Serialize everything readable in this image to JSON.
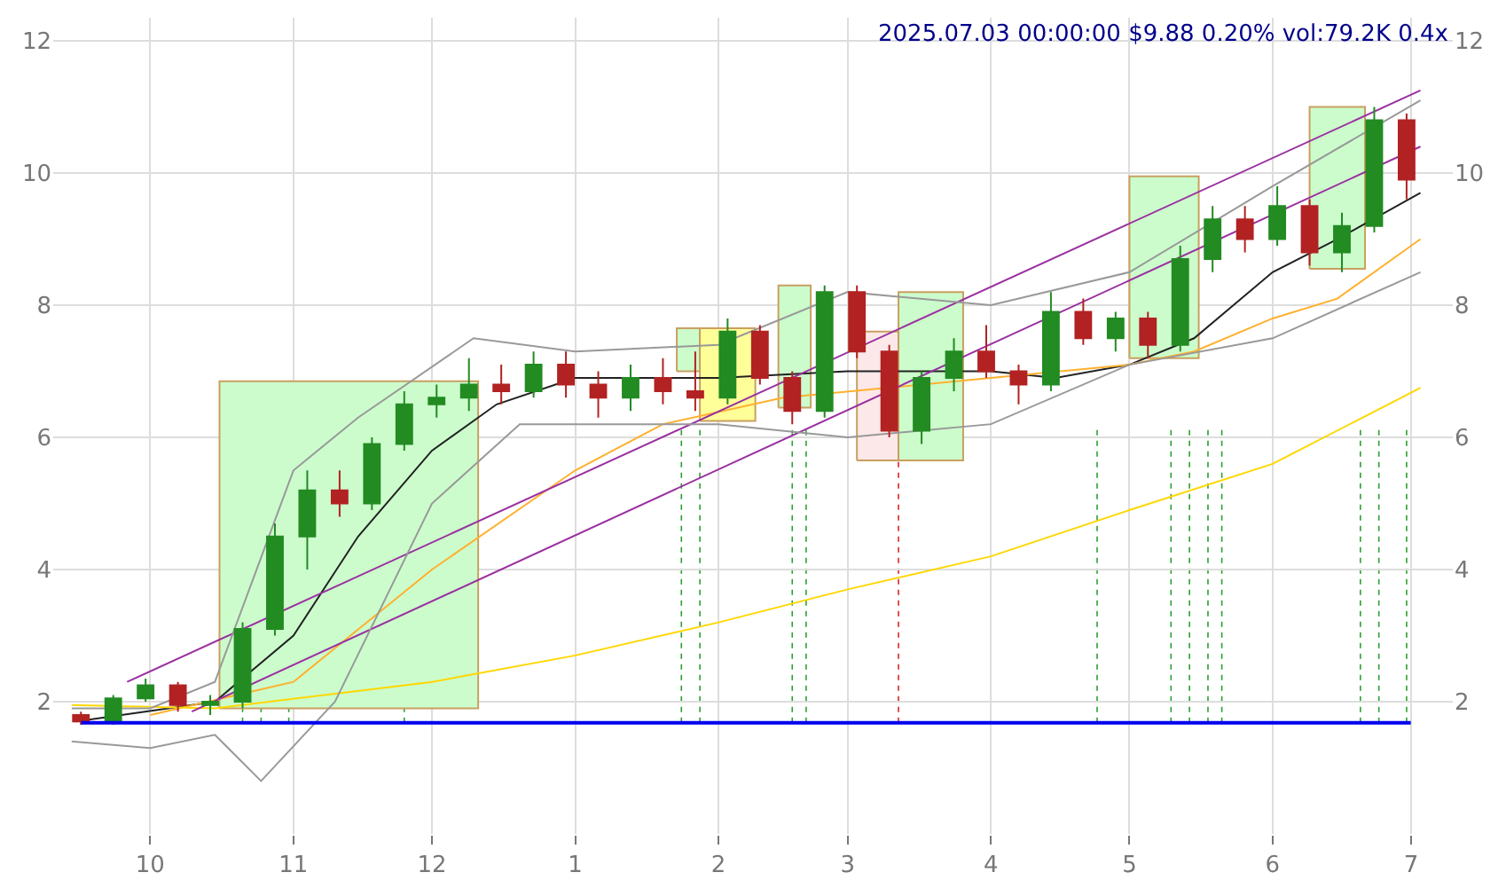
{
  "chart_data": {
    "type": "candlestick",
    "annotations": [
      "2025.07.03 00:00:00 $9.88 0.20% vol:79.2K 0.4x"
    ],
    "x": [
      "2024-09-16",
      "2024-09-23",
      "2024-09-30",
      "2024-10-07",
      "2024-10-14",
      "2024-10-21",
      "2024-10-28",
      "2024-11-04",
      "2024-11-11",
      "2024-11-18",
      "2024-11-25",
      "2024-12-02",
      "2024-12-09",
      "2024-12-16",
      "2024-12-23",
      "2024-12-30",
      "2025-01-06",
      "2025-01-13",
      "2025-01-20",
      "2025-01-27",
      "2025-02-03",
      "2025-02-10",
      "2025-02-17",
      "2025-02-24",
      "2025-03-03",
      "2025-03-10",
      "2025-03-17",
      "2025-03-24",
      "2025-03-31",
      "2025-04-07",
      "2025-04-14",
      "2025-04-21",
      "2025-04-28",
      "2025-05-05",
      "2025-05-12",
      "2025-05-19",
      "2025-05-26",
      "2025-06-02",
      "2025-06-09",
      "2025-06-16",
      "2025-06-23",
      "2025-06-30"
    ],
    "ohlc": [
      [
        1.8,
        1.85,
        1.65,
        1.7
      ],
      [
        1.7,
        2.1,
        1.65,
        2.05
      ],
      [
        2.05,
        2.35,
        2.0,
        2.25
      ],
      [
        2.25,
        2.3,
        1.85,
        1.95
      ],
      [
        1.95,
        2.1,
        1.8,
        2.0
      ],
      [
        2.0,
        3.2,
        1.9,
        3.1
      ],
      [
        3.1,
        4.7,
        3.0,
        4.5
      ],
      [
        4.5,
        5.5,
        4.0,
        5.2
      ],
      [
        5.2,
        5.5,
        4.8,
        5.0
      ],
      [
        5.0,
        6.0,
        4.9,
        5.9
      ],
      [
        5.9,
        6.7,
        5.8,
        6.5
      ],
      [
        6.5,
        6.8,
        6.3,
        6.6
      ],
      [
        6.6,
        7.2,
        6.4,
        6.8
      ],
      [
        6.8,
        7.1,
        6.5,
        6.7
      ],
      [
        6.7,
        7.3,
        6.6,
        7.1
      ],
      [
        7.1,
        7.3,
        6.6,
        6.8
      ],
      [
        6.8,
        7.0,
        6.3,
        6.6
      ],
      [
        6.6,
        7.1,
        6.4,
        6.9
      ],
      [
        6.9,
        7.2,
        6.5,
        6.7
      ],
      [
        6.7,
        7.3,
        6.4,
        6.6
      ],
      [
        6.6,
        7.8,
        6.5,
        7.6
      ],
      [
        7.6,
        7.7,
        6.8,
        6.9
      ],
      [
        6.9,
        7.0,
        6.2,
        6.4
      ],
      [
        6.4,
        8.3,
        6.3,
        8.2
      ],
      [
        8.2,
        8.3,
        7.2,
        7.3
      ],
      [
        7.3,
        7.4,
        6.0,
        6.1
      ],
      [
        6.1,
        7.0,
        5.9,
        6.9
      ],
      [
        6.9,
        7.5,
        6.7,
        7.3
      ],
      [
        7.3,
        7.7,
        6.9,
        7.0
      ],
      [
        7.0,
        7.1,
        6.5,
        6.8
      ],
      [
        6.8,
        8.2,
        6.7,
        7.9
      ],
      [
        7.9,
        8.1,
        7.4,
        7.5
      ],
      [
        7.5,
        7.9,
        7.3,
        7.8
      ],
      [
        7.8,
        7.9,
        7.2,
        7.4
      ],
      [
        7.4,
        8.9,
        7.3,
        8.7
      ],
      [
        8.7,
        9.5,
        8.5,
        9.3
      ],
      [
        9.3,
        9.5,
        8.8,
        9.0
      ],
      [
        9.0,
        9.8,
        8.9,
        9.5
      ],
      [
        9.5,
        9.6,
        8.6,
        8.8
      ],
      [
        8.8,
        9.4,
        8.5,
        9.2
      ],
      [
        9.2,
        11.0,
        9.1,
        10.8
      ],
      [
        10.8,
        10.9,
        9.6,
        9.9
      ]
    ],
    "series": [
      {
        "type": "area",
        "color": "#ccfccc",
        "x": [
          "2024-10-16",
          "2024-10-16",
          "2024-12-11",
          "2024-12-11",
          "2024-10-16"
        ],
        "values": [
          1.9,
          6.85,
          6.85,
          1.9,
          1.9
        ]
      },
      {
        "type": "area",
        "color": "#ccfccc",
        "x": [
          "2025-01-23",
          "2025-01-23",
          "2025-01-28",
          "2025-01-28",
          "2025-01-23"
        ],
        "values": [
          7.0,
          7.65,
          7.65,
          7.0,
          7.0
        ]
      },
      {
        "type": "area",
        "color": "#ffff99",
        "x": [
          "2025-01-28",
          "2025-01-28",
          "2025-02-09",
          "2025-02-09",
          "2025-01-28"
        ],
        "values": [
          6.25,
          7.65,
          7.65,
          6.25,
          6.25
        ]
      },
      {
        "type": "area",
        "color": "#ccfccc",
        "x": [
          "2025-02-14",
          "2025-02-14",
          "2025-02-21",
          "2025-02-21",
          "2025-02-14"
        ],
        "values": [
          6.45,
          8.3,
          8.3,
          6.45,
          6.45
        ]
      },
      {
        "type": "area",
        "color": "#fce8e8",
        "x": [
          "2025-03-03",
          "2025-03-03",
          "2025-03-12",
          "2025-03-12",
          "2025-03-03"
        ],
        "values": [
          5.65,
          7.6,
          7.6,
          5.65,
          5.65
        ]
      },
      {
        "type": "area",
        "color": "#ccfccc",
        "x": [
          "2025-03-12",
          "2025-03-12",
          "2025-03-26",
          "2025-03-26",
          "2025-03-12"
        ],
        "values": [
          5.65,
          8.2,
          8.2,
          5.65,
          5.65
        ]
      },
      {
        "type": "area",
        "color": "#ccfccc",
        "x": [
          "2025-05-01",
          "2025-05-01",
          "2025-05-16",
          "2025-05-16",
          "2025-05-01"
        ],
        "values": [
          7.2,
          9.95,
          9.95,
          7.2,
          7.2
        ]
      },
      {
        "type": "area",
        "color": "#ccfccc",
        "x": [
          "2025-06-09",
          "2025-06-09",
          "2025-06-21",
          "2025-06-21",
          "2025-06-09"
        ],
        "values": [
          8.55,
          11.0,
          11.0,
          8.55,
          8.55
        ]
      },
      {
        "type": "line",
        "color": "#222222",
        "x": [
          "2024-09-15",
          "2024-10-15",
          "2024-11-01",
          "2024-11-15",
          "2024-12-01",
          "2024-12-15",
          "2025-01-01",
          "2025-02-01",
          "2025-03-01",
          "2025-04-01",
          "2025-04-15",
          "2025-05-01",
          "2025-05-15",
          "2025-06-01",
          "2025-06-15",
          "2025-07-03"
        ],
        "values": [
          1.7,
          2.0,
          3.0,
          4.5,
          5.8,
          6.5,
          6.9,
          6.9,
          7.0,
          7.0,
          6.9,
          7.1,
          7.5,
          8.5,
          9.0,
          9.7
        ]
      },
      {
        "type": "line",
        "color": "#ffb02e",
        "x": [
          "2024-10-01",
          "2024-11-01",
          "2024-12-01",
          "2025-01-01",
          "2025-01-20",
          "2025-02-15",
          "2025-04-01",
          "2025-05-01",
          "2025-05-15",
          "2025-06-01",
          "2025-06-15",
          "2025-07-03"
        ],
        "values": [
          1.8,
          2.3,
          4.0,
          5.5,
          6.2,
          6.6,
          6.9,
          7.1,
          7.3,
          7.8,
          8.1,
          9.0
        ]
      },
      {
        "type": "line",
        "color": "#ffd700",
        "x": [
          "2024-09-14",
          "2024-10-15",
          "2024-12-01",
          "2025-01-01",
          "2025-02-01",
          "2025-03-01",
          "2025-04-01",
          "2025-05-01",
          "2025-06-01",
          "2025-07-03"
        ],
        "values": [
          1.95,
          1.9,
          2.3,
          2.7,
          3.2,
          3.7,
          4.2,
          4.9,
          5.6,
          6.75
        ]
      },
      {
        "type": "line",
        "color": "#9a2fa0",
        "x": [
          "2024-09-26",
          "2025-07-03"
        ],
        "values": [
          2.3,
          11.25
        ]
      },
      {
        "type": "line",
        "color": "#9a2fa0",
        "x": [
          "2024-10-10",
          "2025-07-03"
        ],
        "values": [
          1.85,
          10.4
        ]
      },
      {
        "type": "line",
        "color": "#999999",
        "x": [
          "2024-09-14",
          "2024-10-01",
          "2024-10-15",
          "2024-11-01",
          "2024-11-15",
          "2024-12-10",
          "2025-01-01",
          "2025-02-01",
          "2025-03-01",
          "2025-04-01",
          "2025-05-01",
          "2025-06-01",
          "2025-07-03"
        ],
        "values": [
          1.9,
          1.9,
          2.3,
          5.5,
          6.3,
          7.5,
          7.3,
          7.4,
          8.2,
          8.0,
          8.5,
          9.8,
          11.1
        ]
      },
      {
        "type": "line",
        "color": "#999999",
        "x": [
          "2024-09-14",
          "2024-10-01",
          "2024-10-15",
          "2024-10-25",
          "2024-11-10",
          "2024-12-01",
          "2024-12-20",
          "2025-02-01",
          "2025-03-01",
          "2025-04-01",
          "2025-05-01",
          "2025-06-01",
          "2025-07-03"
        ],
        "values": [
          1.4,
          1.3,
          1.5,
          0.8,
          2.0,
          5.0,
          6.2,
          6.2,
          6.0,
          6.2,
          7.1,
          7.5,
          8.5
        ]
      }
    ],
    "ref_lines": [
      {
        "axis": "y",
        "value": 1.68,
        "color": "#0000ee",
        "line_style": "solid"
      },
      {
        "axis": "x",
        "value": "2024-10-21",
        "color": "#2ca02c",
        "line_style": "dotted"
      },
      {
        "axis": "x",
        "value": "2024-10-25",
        "color": "#2ca02c",
        "line_style": "dotted"
      },
      {
        "axis": "x",
        "value": "2024-10-31",
        "color": "#2ca02c",
        "line_style": "dotted"
      },
      {
        "axis": "x",
        "value": "2024-11-25",
        "color": "#2ca02c",
        "line_style": "dotted"
      },
      {
        "axis": "x",
        "value": "2025-01-24",
        "color": "#2ca02c",
        "line_style": "dotted"
      },
      {
        "axis": "x",
        "value": "2025-01-28",
        "color": "#2ca02c",
        "line_style": "dotted"
      },
      {
        "axis": "x",
        "value": "2025-02-17",
        "color": "#2ca02c",
        "line_style": "dotted"
      },
      {
        "axis": "x",
        "value": "2025-02-20",
        "color": "#2ca02c",
        "line_style": "dotted"
      },
      {
        "axis": "x",
        "value": "2025-03-12",
        "color": "#d62728",
        "line_style": "dotted"
      },
      {
        "axis": "x",
        "value": "2025-04-24",
        "color": "#2ca02c",
        "line_style": "dotted"
      },
      {
        "axis": "x",
        "value": "2025-05-10",
        "color": "#2ca02c",
        "line_style": "dotted"
      },
      {
        "axis": "x",
        "value": "2025-05-14",
        "color": "#2ca02c",
        "line_style": "dotted"
      },
      {
        "axis": "x",
        "value": "2025-05-18",
        "color": "#2ca02c",
        "line_style": "dotted"
      },
      {
        "axis": "x",
        "value": "2025-05-21",
        "color": "#2ca02c",
        "line_style": "dotted"
      },
      {
        "axis": "x",
        "value": "2025-06-20",
        "color": "#2ca02c",
        "line_style": "dotted"
      },
      {
        "axis": "x",
        "value": "2025-06-24",
        "color": "#2ca02c",
        "line_style": "dotted"
      },
      {
        "axis": "x",
        "value": "2025-06-30",
        "color": "#2ca02c",
        "line_style": "dotted"
      }
    ],
    "xlim": [
      "2024-09-10",
      "2025-07-10"
    ],
    "xticks": [
      {
        "value": "2024-10-01",
        "label": "10"
      },
      {
        "value": "2024-11-01",
        "label": "11"
      },
      {
        "value": "2024-12-01",
        "label": "12"
      },
      {
        "value": "2025-01-01",
        "label": "1"
      },
      {
        "value": "2025-02-01",
        "label": "2"
      },
      {
        "value": "2025-03-01",
        "label": "3"
      },
      {
        "value": "2025-04-01",
        "label": "4"
      },
      {
        "value": "2025-05-01",
        "label": "5"
      },
      {
        "value": "2025-06-01",
        "label": "6"
      },
      {
        "value": "2025-07-01",
        "label": "7"
      }
    ],
    "ylim": [
      0,
      12.35
    ],
    "yticks": [
      2,
      4,
      6,
      8,
      10,
      12
    ],
    "y2lim": [
      0,
      12.35
    ],
    "y2ticks": [
      2,
      4,
      6,
      8,
      10,
      12
    ],
    "grid": true
  }
}
